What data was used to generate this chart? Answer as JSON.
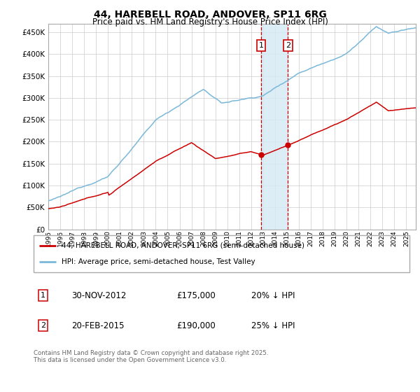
{
  "title": "44, HAREBELL ROAD, ANDOVER, SP11 6RG",
  "subtitle": "Price paid vs. HM Land Registry's House Price Index (HPI)",
  "ylabel_ticks": [
    "£0",
    "£50K",
    "£100K",
    "£150K",
    "£200K",
    "£250K",
    "£300K",
    "£350K",
    "£400K",
    "£450K"
  ],
  "ytick_vals": [
    0,
    50000,
    100000,
    150000,
    200000,
    250000,
    300000,
    350000,
    400000,
    450000
  ],
  "ylim": [
    0,
    470000
  ],
  "xlim_start": 1995.0,
  "xlim_end": 2025.8,
  "hpi_color": "#7ab8d9",
  "price_color": "#cc0000",
  "transaction1": {
    "date": "30-NOV-2012",
    "price": 175000,
    "label": "1",
    "discount": "20% ↓ HPI"
  },
  "transaction2": {
    "date": "20-FEB-2015",
    "price": 190000,
    "label": "2",
    "discount": "25% ↓ HPI"
  },
  "legend_line1": "44, HAREBELL ROAD, ANDOVER, SP11 6RG (semi-detached house)",
  "legend_line2": "HPI: Average price, semi-detached house, Test Valley",
  "footer": "Contains HM Land Registry data © Crown copyright and database right 2025.\nThis data is licensed under the Open Government Licence v3.0.",
  "shade_color": "#d6eaf5",
  "vline_color": "#cc0000",
  "background_color": "#ffffff",
  "grid_color": "#cccccc",
  "t1_year_dec": 2012.833,
  "t2_year_dec": 2015.083
}
